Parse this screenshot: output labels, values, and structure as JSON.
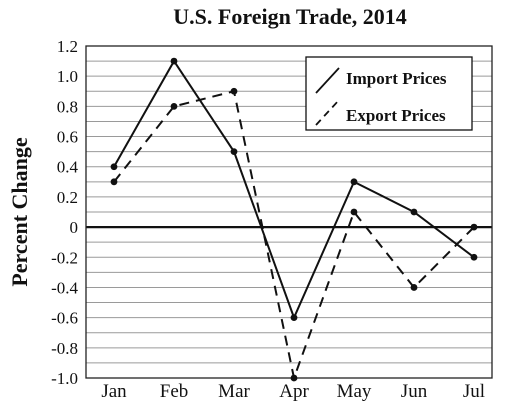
{
  "chart_data": {
    "type": "line",
    "title": "U.S. Foreign Trade, 2014",
    "xlabel": "",
    "ylabel": "Percent Change",
    "categories": [
      "Jan",
      "Feb",
      "Mar",
      "Apr",
      "May",
      "Jun",
      "Jul"
    ],
    "series": [
      {
        "name": "Import Prices",
        "style": "solid",
        "values": [
          0.4,
          1.1,
          0.5,
          -0.6,
          0.3,
          0.1,
          -0.2
        ]
      },
      {
        "name": "Export Prices",
        "style": "dashed",
        "values": [
          0.3,
          0.8,
          0.9,
          -1.0,
          0.1,
          -0.4,
          0.0
        ]
      }
    ],
    "ylim": [
      -1.0,
      1.2
    ],
    "yticks": [
      "1.2",
      "1.0",
      "0.8",
      "0.6",
      "0.4",
      "0.2",
      "0",
      "-0.2",
      "-0.4",
      "-0.6",
      "-0.8",
      "-1.0"
    ],
    "ytick_values": [
      1.2,
      1.0,
      0.8,
      0.6,
      0.4,
      0.2,
      0,
      -0.2,
      -0.4,
      -0.6,
      -0.8,
      -1.0
    ],
    "grid": true,
    "grid_step": 0.1,
    "legend_position": "top-right",
    "colors": {
      "line": "#111111",
      "grid": "#9a9a9a"
    }
  }
}
